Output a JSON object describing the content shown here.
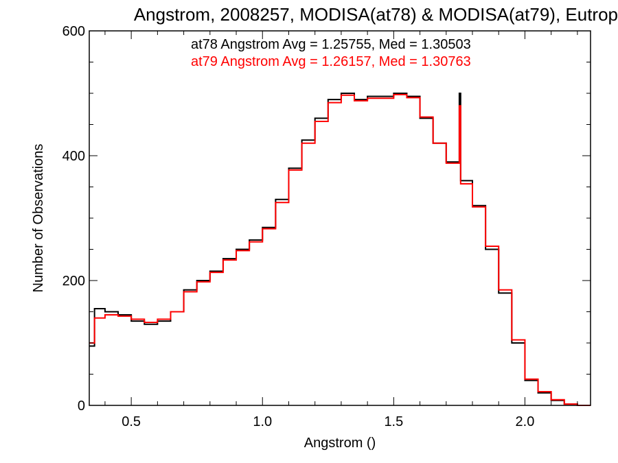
{
  "chart_data": {
    "type": "line",
    "step": true,
    "title": "Angstrom, 2008257, MODISA(at78) & MODISA(at79), Eutrop",
    "xlabel": "Angstrom ()",
    "ylabel": "Number of Observations",
    "xlim": [
      0.34,
      2.25
    ],
    "ylim": [
      0,
      600
    ],
    "x_ticks": [
      0.5,
      1.0,
      1.5,
      2.0
    ],
    "x_tick_labels": [
      "0.5",
      "1.0",
      "1.5",
      "2.0"
    ],
    "y_ticks": [
      0,
      200,
      400,
      600
    ],
    "y_tick_labels": [
      "0",
      "200",
      "400",
      "600"
    ],
    "grid": false,
    "annotations": [
      {
        "text": "at78 Angstrom Avg = 1.25755, Med = 1.30503",
        "color": "#000000"
      },
      {
        "text": "at79 Angstrom Avg = 1.26157, Med = 1.30763",
        "color": "#ff0000"
      }
    ],
    "series": [
      {
        "color": "#000000",
        "points": [
          [
            0.34,
            95
          ],
          [
            0.36,
            155
          ],
          [
            0.4,
            150
          ],
          [
            0.45,
            145
          ],
          [
            0.5,
            135
          ],
          [
            0.55,
            130
          ],
          [
            0.6,
            135
          ],
          [
            0.65,
            150
          ],
          [
            0.7,
            185
          ],
          [
            0.75,
            200
          ],
          [
            0.8,
            215
          ],
          [
            0.85,
            235
          ],
          [
            0.9,
            250
          ],
          [
            0.95,
            265
          ],
          [
            1.0,
            285
          ],
          [
            1.05,
            330
          ],
          [
            1.1,
            380
          ],
          [
            1.15,
            425
          ],
          [
            1.2,
            460
          ],
          [
            1.25,
            490
          ],
          [
            1.3,
            500
          ],
          [
            1.35,
            490
          ],
          [
            1.4,
            495
          ],
          [
            1.45,
            495
          ],
          [
            1.5,
            500
          ],
          [
            1.55,
            495
          ],
          [
            1.6,
            460
          ],
          [
            1.65,
            420
          ],
          [
            1.7,
            390
          ],
          [
            1.75,
            500
          ],
          [
            1.755,
            360
          ],
          [
            1.8,
            320
          ],
          [
            1.85,
            250
          ],
          [
            1.9,
            180
          ],
          [
            1.95,
            100
          ],
          [
            2.0,
            40
          ],
          [
            2.05,
            20
          ],
          [
            2.1,
            8
          ],
          [
            2.15,
            2
          ],
          [
            2.2,
            0
          ],
          [
            2.25,
            0
          ]
        ]
      },
      {
        "color": "#ff0000",
        "points": [
          [
            0.34,
            100
          ],
          [
            0.36,
            140
          ],
          [
            0.4,
            145
          ],
          [
            0.45,
            143
          ],
          [
            0.5,
            138
          ],
          [
            0.55,
            133
          ],
          [
            0.6,
            138
          ],
          [
            0.65,
            150
          ],
          [
            0.7,
            182
          ],
          [
            0.75,
            198
          ],
          [
            0.8,
            213
          ],
          [
            0.85,
            233
          ],
          [
            0.9,
            248
          ],
          [
            0.95,
            262
          ],
          [
            1.0,
            283
          ],
          [
            1.05,
            325
          ],
          [
            1.1,
            377
          ],
          [
            1.15,
            420
          ],
          [
            1.2,
            455
          ],
          [
            1.25,
            485
          ],
          [
            1.3,
            497
          ],
          [
            1.35,
            488
          ],
          [
            1.4,
            492
          ],
          [
            1.45,
            492
          ],
          [
            1.5,
            498
          ],
          [
            1.55,
            493
          ],
          [
            1.6,
            462
          ],
          [
            1.65,
            420
          ],
          [
            1.7,
            388
          ],
          [
            1.75,
            480
          ],
          [
            1.755,
            355
          ],
          [
            1.8,
            318
          ],
          [
            1.85,
            255
          ],
          [
            1.9,
            185
          ],
          [
            1.95,
            105
          ],
          [
            2.0,
            42
          ],
          [
            2.05,
            22
          ],
          [
            2.1,
            9
          ],
          [
            2.15,
            2
          ],
          [
            2.2,
            0
          ],
          [
            2.25,
            0
          ]
        ]
      }
    ]
  }
}
